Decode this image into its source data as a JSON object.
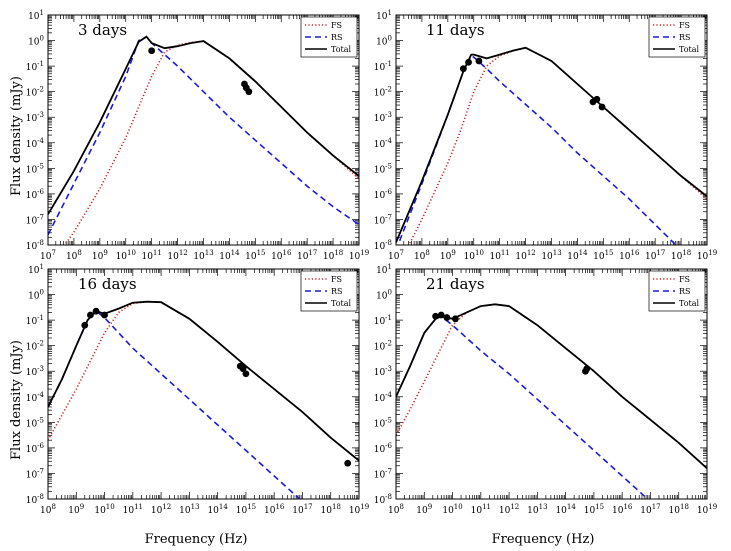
{
  "figure": {
    "ylabel": "Flux density (mJy)",
    "xlabel": "Frequency (Hz)"
  },
  "legend": {
    "entries": [
      {
        "label": "FS",
        "color": "#cc2222",
        "style": "dotted"
      },
      {
        "label": "RS",
        "color": "#1a1adb",
        "style": "dashed"
      },
      {
        "label": "Total",
        "color": "#000000",
        "style": "solid"
      }
    ]
  },
  "chart_data": [
    {
      "type": "line",
      "panel_label": "3 days",
      "x_scale": "log",
      "y_scale": "log",
      "xlim_exp": [
        7,
        19
      ],
      "ylim_exp": [
        -8,
        1
      ],
      "xticks": [
        "10^7",
        "10^8",
        "10^9",
        "10^10",
        "10^11",
        "10^12",
        "10^13",
        "10^14",
        "10^15",
        "10^16",
        "10^17",
        "10^18",
        "10^19"
      ],
      "yticks": [
        "10^-8",
        "10^-7",
        "10^-6",
        "10^-5",
        "10^-4",
        "10^-3",
        "10^-2",
        "10^-1",
        "10^0",
        "10^1"
      ],
      "series": [
        {
          "name": "FS",
          "color": "#cc2222",
          "x_log": [
            7,
            8,
            9,
            10,
            10.5,
            11,
            11.5,
            12,
            12.5,
            13,
            14,
            15,
            16,
            17,
            18,
            19
          ],
          "y_log": [
            -8.9,
            -7.5,
            -5.8,
            -3.8,
            -2.6,
            -1.4,
            -0.45,
            -0.18,
            -0.08,
            -0.02,
            -0.7,
            -1.6,
            -2.6,
            -3.6,
            -4.5,
            -5.4
          ]
        },
        {
          "name": "RS",
          "color": "#1a1adb",
          "x_log": [
            7,
            8,
            9,
            10,
            10.5,
            10.8,
            11,
            12,
            13,
            14,
            15,
            16,
            17,
            18,
            19
          ],
          "y_log": [
            -7.6,
            -5.6,
            -3.6,
            -1.4,
            0.0,
            0.15,
            -0.1,
            -1.0,
            -2.0,
            -3.0,
            -3.9,
            -4.8,
            -5.7,
            -6.5,
            -7.2
          ]
        },
        {
          "name": "Total",
          "color": "#000000",
          "x_log": [
            7,
            8,
            9,
            10,
            10.5,
            10.8,
            11,
            11.5,
            12,
            12.5,
            13,
            14,
            15,
            16,
            17,
            18,
            19
          ],
          "y_log": [
            -6.8,
            -5.1,
            -3.2,
            -1.1,
            -0.05,
            0.15,
            -0.1,
            -0.3,
            -0.22,
            -0.1,
            -0.02,
            -0.7,
            -1.6,
            -2.6,
            -3.6,
            -4.5,
            -5.3
          ]
        },
        {
          "name": "Data",
          "x_log": [
            11.0,
            14.58,
            14.65,
            14.75
          ],
          "y_log": [
            -0.4,
            -1.7,
            -1.85,
            -2.0
          ]
        }
      ]
    },
    {
      "type": "line",
      "panel_label": "11 days",
      "x_scale": "log",
      "y_scale": "log",
      "xlim_exp": [
        7,
        19
      ],
      "ylim_exp": [
        -8,
        1
      ],
      "xticks": [
        "10^7",
        "10^8",
        "10^9",
        "10^10",
        "10^11",
        "10^12",
        "10^13",
        "10^14",
        "10^15",
        "10^16",
        "10^17",
        "10^18",
        "10^19"
      ],
      "yticks": [
        "10^-8",
        "10^-7",
        "10^-6",
        "10^-5",
        "10^-4",
        "10^-3",
        "10^-2",
        "10^-1",
        "10^0",
        "10^1"
      ],
      "series": [
        {
          "name": "FS",
          "color": "#cc2222",
          "x_log": [
            7,
            8,
            9,
            9.5,
            10,
            10.5,
            11,
            11.5,
            12,
            13,
            14,
            15,
            16,
            17,
            18,
            19
          ],
          "y_log": [
            -9.0,
            -7.0,
            -4.8,
            -3.5,
            -2.0,
            -1.0,
            -0.6,
            -0.4,
            -0.28,
            -0.8,
            -1.7,
            -2.6,
            -3.5,
            -4.4,
            -5.3,
            -6.2
          ]
        },
        {
          "name": "RS",
          "color": "#1a1adb",
          "x_log": [
            7,
            8,
            9,
            9.6,
            9.9,
            10,
            10.5,
            11,
            12,
            13,
            14,
            15,
            16,
            17,
            18,
            19
          ],
          "y_log": [
            -8.2,
            -5.6,
            -2.9,
            -1.2,
            -0.6,
            -0.65,
            -1.1,
            -1.6,
            -2.5,
            -3.4,
            -4.4,
            -5.3,
            -6.2,
            -7.2,
            -8.2,
            -9.2
          ]
        },
        {
          "name": "Total",
          "color": "#000000",
          "x_log": [
            7,
            8,
            9,
            9.6,
            9.9,
            10,
            10.5,
            11,
            11.5,
            12,
            13,
            14,
            15,
            16,
            17,
            18,
            19
          ],
          "y_log": [
            -7.9,
            -5.5,
            -2.9,
            -1.2,
            -0.55,
            -0.55,
            -0.7,
            -0.55,
            -0.4,
            -0.28,
            -0.8,
            -1.7,
            -2.6,
            -3.5,
            -4.4,
            -5.3,
            -6.1
          ]
        },
        {
          "name": "Data",
          "x_log": [
            9.6,
            9.8,
            10.2,
            14.6,
            14.75,
            14.95
          ],
          "y_log": [
            -1.1,
            -0.85,
            -0.8,
            -2.4,
            -2.3,
            -2.6
          ]
        }
      ]
    },
    {
      "type": "line",
      "panel_label": "16 days",
      "x_scale": "log",
      "y_scale": "log",
      "xlim_exp": [
        8,
        19
      ],
      "ylim_exp": [
        -8,
        1
      ],
      "xticks": [
        "10^8",
        "10^9",
        "10^10",
        "10^11",
        "10^12",
        "10^13",
        "10^14",
        "10^15",
        "10^16",
        "10^17",
        "10^18",
        "10^19"
      ],
      "yticks": [
        "10^-8",
        "10^-7",
        "10^-6",
        "10^-5",
        "10^-4",
        "10^-3",
        "10^-2",
        "10^-1",
        "10^0",
        "10^1"
      ],
      "series": [
        {
          "name": "FS",
          "color": "#cc2222",
          "x_log": [
            8,
            8.5,
            9,
            9.5,
            10,
            10.5,
            11,
            11.5,
            12,
            13,
            14,
            15,
            16,
            17,
            18,
            19
          ],
          "y_log": [
            -5.7,
            -4.7,
            -3.7,
            -2.6,
            -1.5,
            -0.7,
            -0.35,
            -0.28,
            -0.3,
            -0.95,
            -1.85,
            -2.8,
            -3.7,
            -4.6,
            -5.6,
            -6.5
          ]
        },
        {
          "name": "RS",
          "color": "#1a1adb",
          "x_log": [
            8,
            8.5,
            9,
            9.4,
            9.7,
            10,
            10.5,
            11,
            12,
            13,
            14,
            15,
            16,
            17,
            18,
            19
          ],
          "y_log": [
            -4.4,
            -3.3,
            -2.0,
            -1.0,
            -0.65,
            -0.9,
            -1.5,
            -2.1,
            -3.1,
            -4.1,
            -5.1,
            -6.1,
            -7.1,
            -8.1,
            -9.1,
            -10.1
          ]
        },
        {
          "name": "Total",
          "color": "#000000",
          "x_log": [
            8,
            8.5,
            9,
            9.4,
            9.7,
            10,
            10.5,
            11,
            11.5,
            12,
            13,
            14,
            15,
            16,
            17,
            18,
            19
          ],
          "y_log": [
            -4.4,
            -3.3,
            -2.0,
            -1.0,
            -0.65,
            -0.75,
            -0.55,
            -0.32,
            -0.28,
            -0.3,
            -0.95,
            -1.85,
            -2.8,
            -3.7,
            -4.6,
            -5.6,
            -6.5
          ]
        },
        {
          "name": "Data",
          "x_log": [
            9.3,
            9.5,
            9.7,
            10.0,
            14.8,
            14.9,
            15.0,
            18.6
          ],
          "y_log": [
            -1.2,
            -0.8,
            -0.65,
            -0.8,
            -2.8,
            -2.9,
            -3.1,
            -6.6
          ]
        }
      ]
    },
    {
      "type": "line",
      "panel_label": "21 days",
      "x_scale": "log",
      "y_scale": "log",
      "xlim_exp": [
        8,
        19
      ],
      "ylim_exp": [
        -8,
        1
      ],
      "xticks": [
        "10^8",
        "10^9",
        "10^10",
        "10^11",
        "10^12",
        "10^13",
        "10^14",
        "10^15",
        "10^16",
        "10^17",
        "10^18",
        "10^19"
      ],
      "yticks": [
        "10^-8",
        "10^-7",
        "10^-6",
        "10^-5",
        "10^-4",
        "10^-3",
        "10^-2",
        "10^-1",
        "10^0",
        "10^1"
      ],
      "series": [
        {
          "name": "FS",
          "color": "#cc2222",
          "x_log": [
            8,
            8.5,
            9,
            9.5,
            10,
            10.5,
            11,
            11.5,
            12,
            13,
            14,
            15,
            16,
            17,
            18,
            19
          ],
          "y_log": [
            -5.5,
            -4.5,
            -3.4,
            -2.3,
            -1.2,
            -0.7,
            -0.45,
            -0.38,
            -0.45,
            -1.2,
            -2.1,
            -3.0,
            -4.0,
            -4.9,
            -5.8,
            -6.8
          ]
        },
        {
          "name": "RS",
          "color": "#1a1adb",
          "x_log": [
            8,
            8.5,
            9,
            9.4,
            9.6,
            10,
            10.5,
            11,
            12,
            13,
            14,
            15,
            16,
            17,
            18,
            19
          ],
          "y_log": [
            -4.0,
            -2.8,
            -1.5,
            -0.95,
            -0.85,
            -1.2,
            -1.7,
            -2.2,
            -3.1,
            -4.1,
            -5.1,
            -6.1,
            -7.1,
            -8.1,
            -9.1,
            -10.1
          ]
        },
        {
          "name": "Total",
          "color": "#000000",
          "x_log": [
            8,
            8.5,
            9,
            9.4,
            9.6,
            10,
            10.5,
            11,
            11.5,
            12,
            13,
            14,
            15,
            16,
            17,
            18,
            19
          ],
          "y_log": [
            -4.0,
            -2.8,
            -1.5,
            -0.95,
            -0.85,
            -0.95,
            -0.7,
            -0.45,
            -0.38,
            -0.45,
            -1.2,
            -2.1,
            -3.0,
            -4.0,
            -4.9,
            -5.8,
            -6.8
          ]
        },
        {
          "name": "Data",
          "x_log": [
            9.4,
            9.6,
            9.8,
            10.1,
            14.7,
            14.75
          ],
          "y_log": [
            -0.85,
            -0.8,
            -0.9,
            -0.95,
            -3.0,
            -2.9
          ]
        }
      ]
    }
  ]
}
